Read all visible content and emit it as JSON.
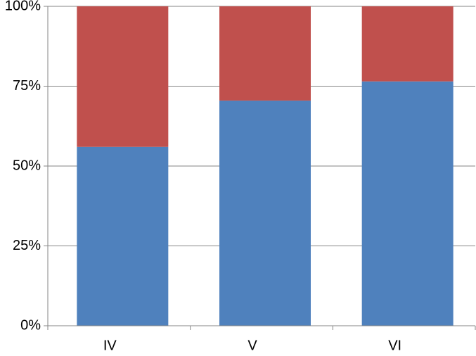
{
  "chart_data": {
    "type": "stacked_bar",
    "categories": [
      "IV",
      "V",
      "VI"
    ],
    "series": [
      {
        "color": "#4f81bd",
        "values": [
          56,
          70.5,
          76.5
        ]
      },
      {
        "color": "#c0504d",
        "values": [
          44,
          29.5,
          23.5
        ]
      }
    ],
    "ylim": [
      0,
      100
    ],
    "yticks": [
      {
        "value": 0,
        "label": "0%"
      },
      {
        "value": 25,
        "label": "25%"
      },
      {
        "value": 50,
        "label": "50%"
      },
      {
        "value": 75,
        "label": "75%"
      },
      {
        "value": 100,
        "label": "100%"
      }
    ],
    "grid": true
  }
}
